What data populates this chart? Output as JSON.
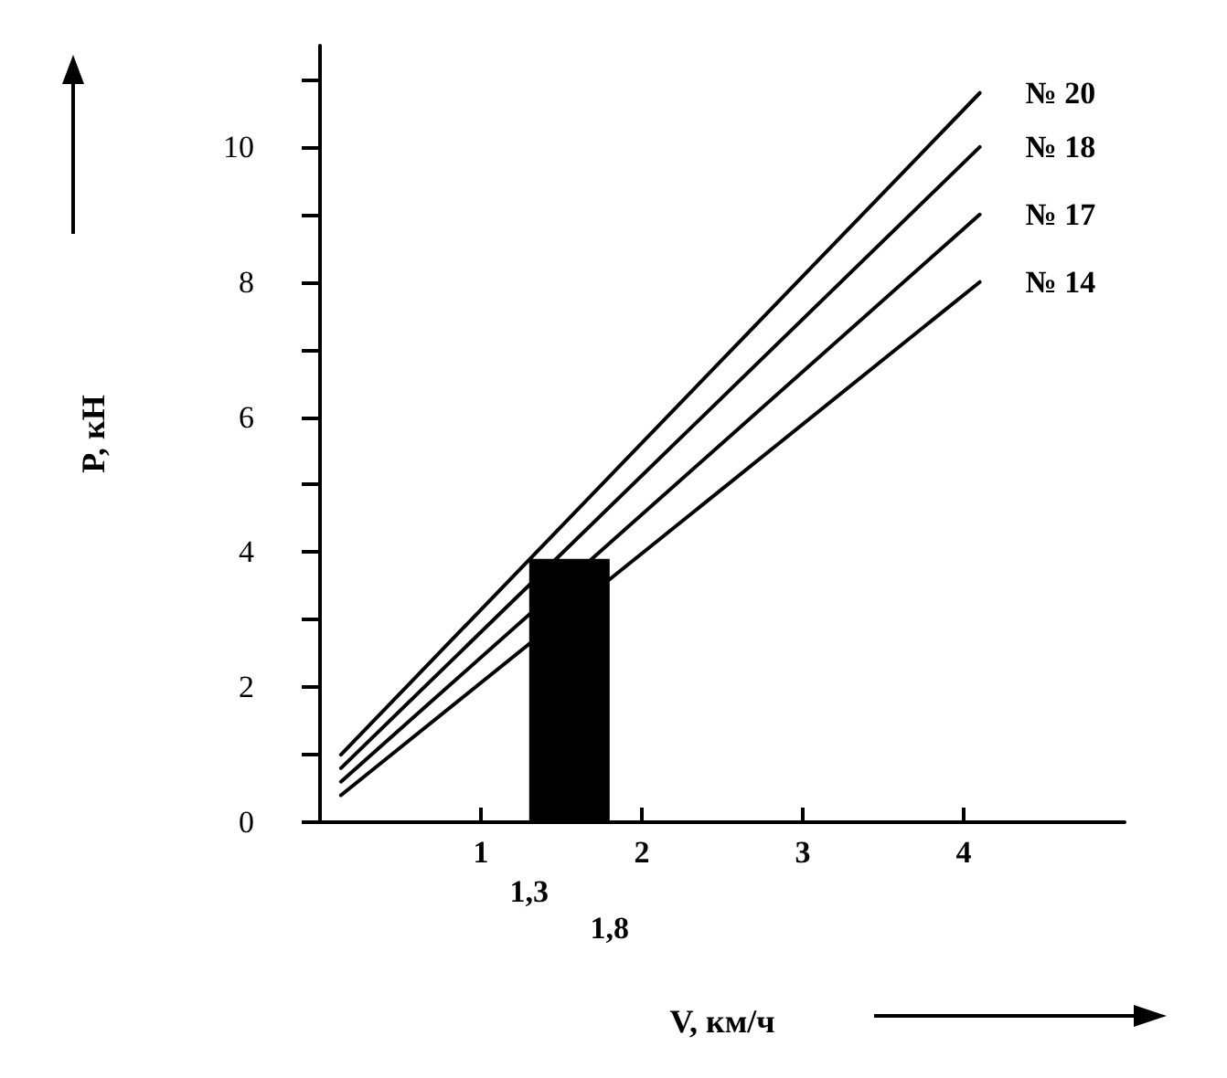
{
  "chart_data": {
    "type": "line",
    "xlabel": "V, км/ч",
    "ylabel": "P, кН",
    "xlim": [
      0,
      5
    ],
    "xticks": [
      1,
      2,
      3,
      4
    ],
    "annotations": [
      {
        "text": "1,3",
        "x": 1.3,
        "y": 0
      },
      {
        "text": "1,8",
        "x": 1.8,
        "y": 0
      }
    ],
    "ylim": [
      0,
      11.5
    ],
    "yticks": [
      0,
      {
        "value": 1,
        "label": null
      },
      2,
      {
        "value": 3,
        "label": null
      },
      4,
      {
        "value": 5,
        "label": null
      },
      6,
      {
        "value": 7,
        "label": null
      },
      8,
      {
        "value": 9,
        "label": null
      },
      10,
      {
        "value": 11,
        "label": null
      }
    ],
    "grid": false,
    "legend": false,
    "marker": "none",
    "line_style": "solid",
    "series": [
      {
        "name": "№ 20",
        "color": "#000000",
        "x": [
          0.13,
          4.1
        ],
        "values": [
          1.0,
          10.8
        ]
      },
      {
        "name": "№ 18",
        "color": "#000000",
        "x": [
          0.13,
          4.1
        ],
        "values": [
          0.8,
          10.0
        ]
      },
      {
        "name": "№ 17",
        "color": "#000000",
        "x": [
          0.13,
          4.1
        ],
        "values": [
          0.6,
          9.0
        ]
      },
      {
        "name": "№ 14",
        "color": "#000000",
        "x": [
          0.13,
          4.1
        ],
        "values": [
          0.4,
          8.0
        ]
      },
      {
        "type": "area",
        "color": "#000000",
        "x": [
          1.3,
          1.8
        ],
        "values": [
          3.9,
          3.9
        ]
      }
    ]
  }
}
